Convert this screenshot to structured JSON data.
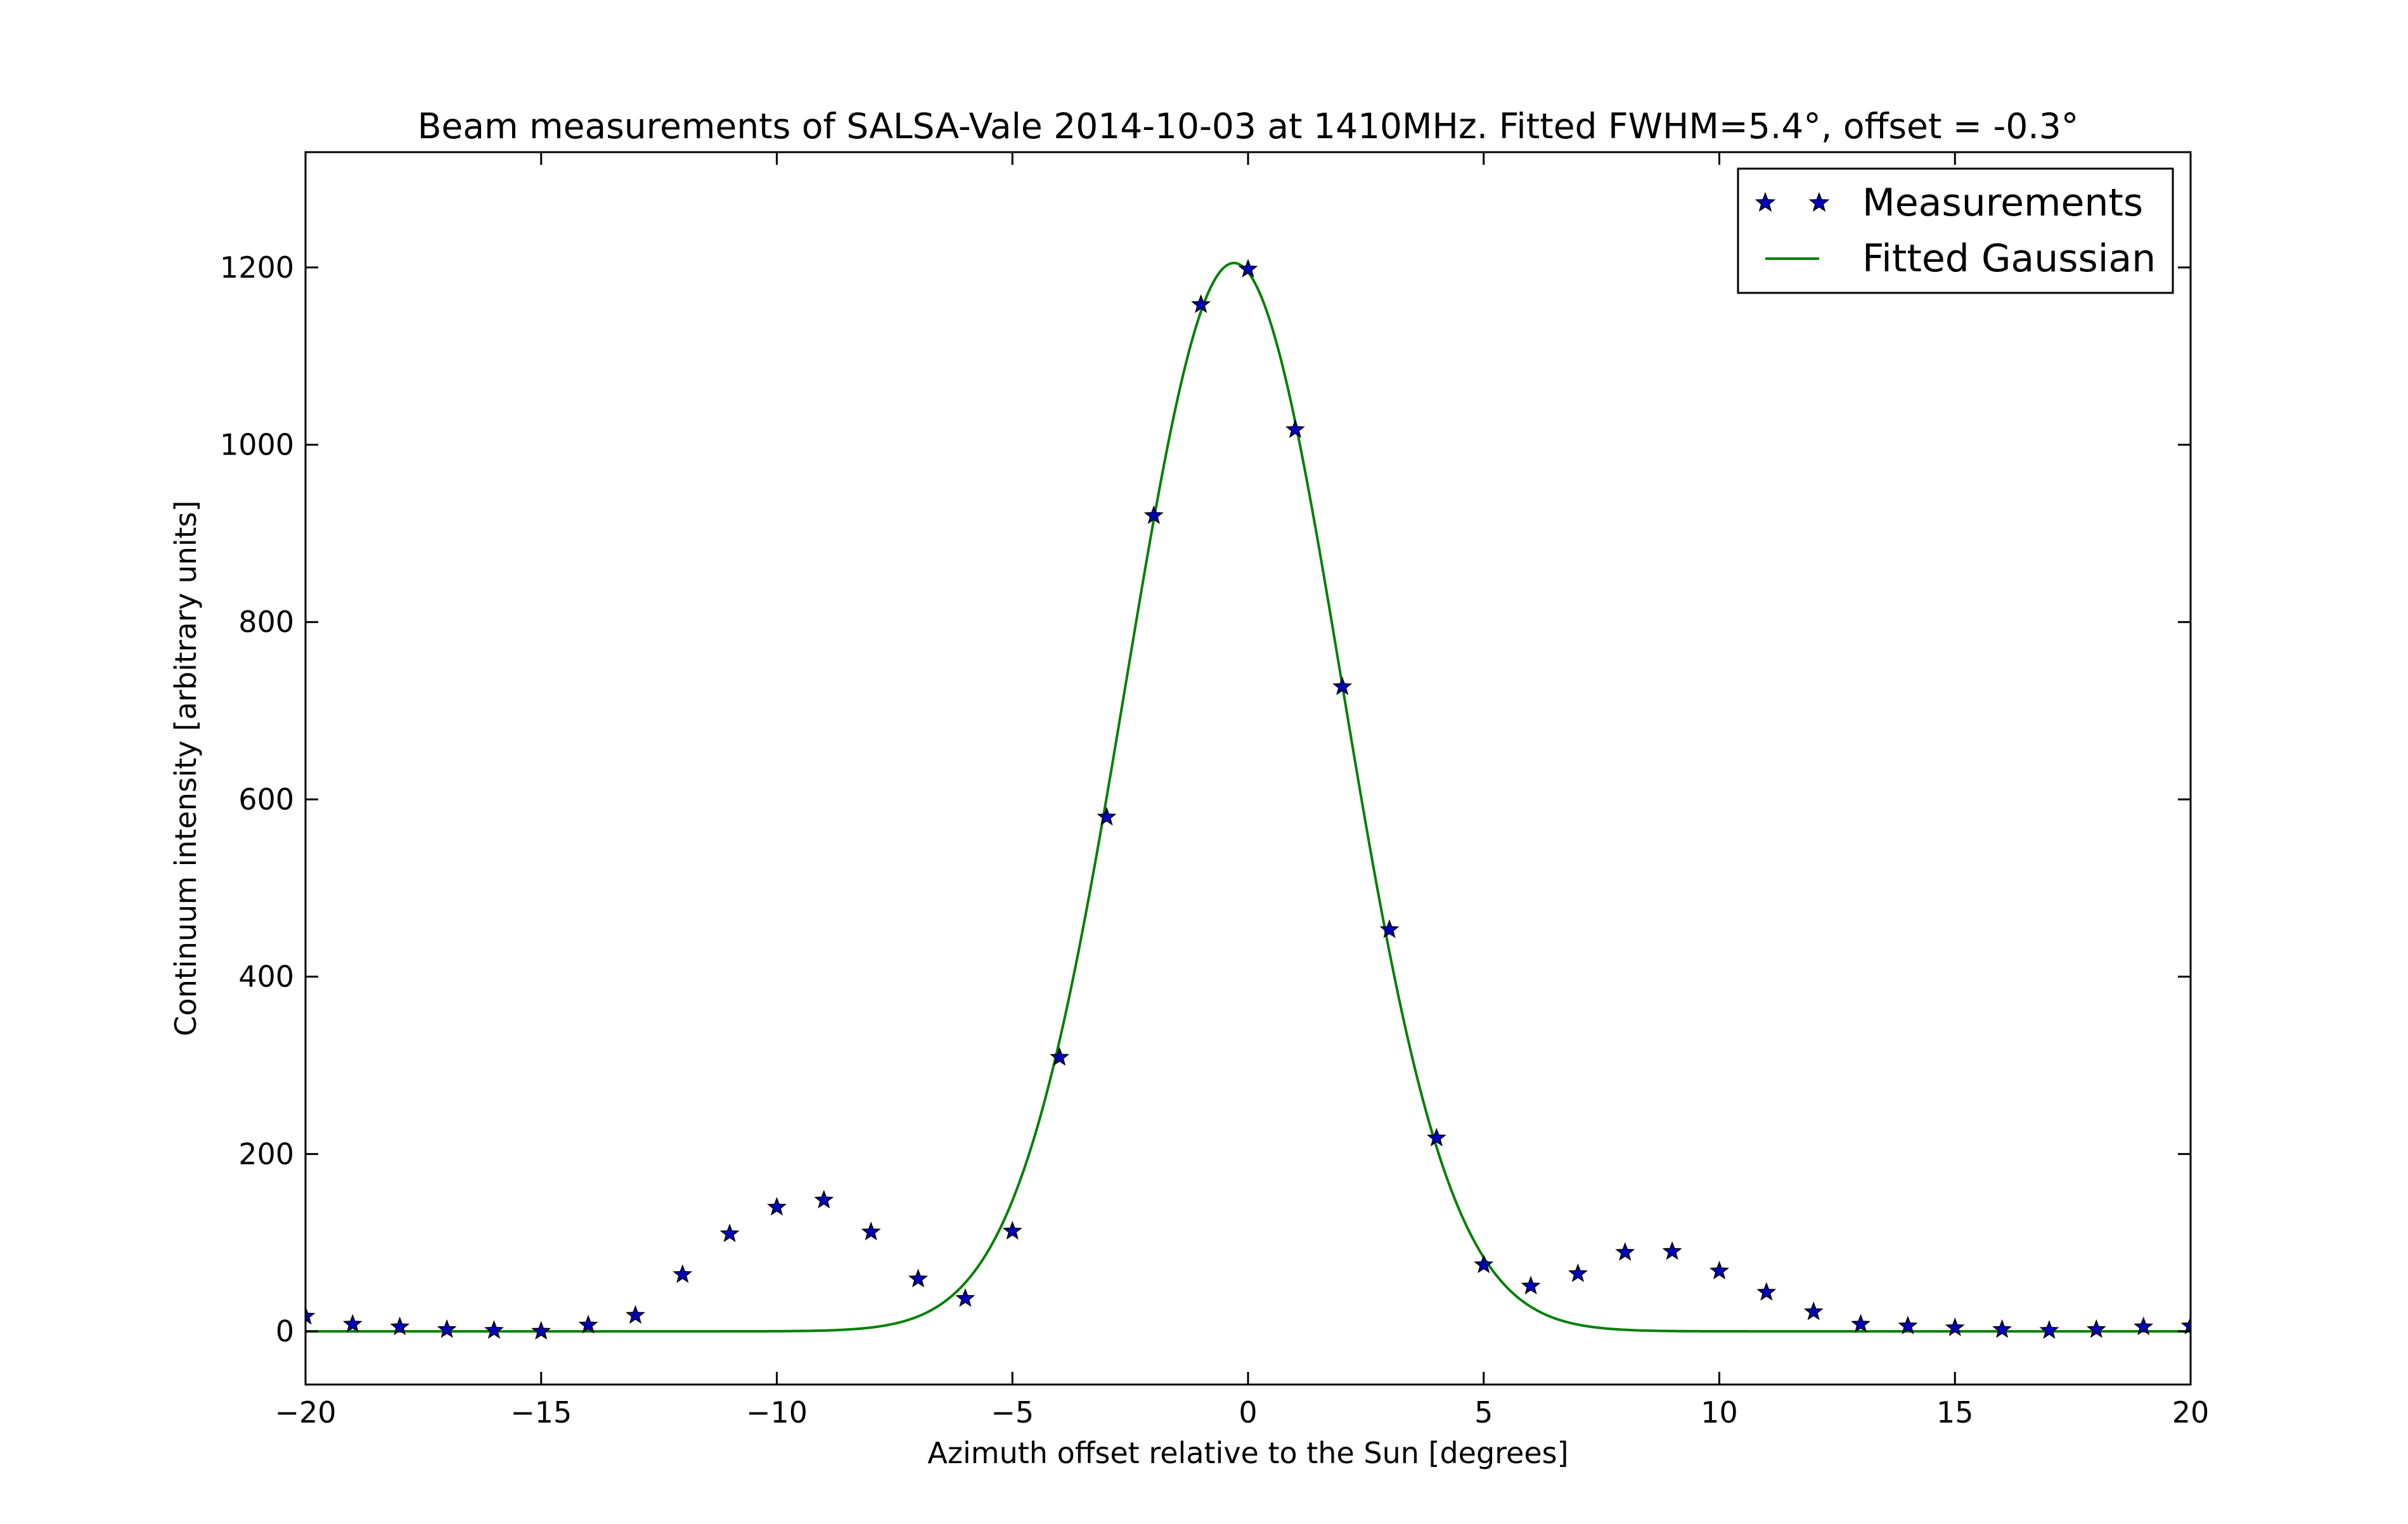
{
  "chart_data": {
    "type": "scatter",
    "title": "Beam measurements of SALSA-Vale 2014-10-03 at 1410MHz. Fitted FWHM=5.4°, offset = -0.3°",
    "xlabel": "Azimuth offset relative to the Sun [degrees]",
    "ylabel": "Continuum intensity [arbitrary units]",
    "xlim": [
      -20,
      20
    ],
    "ylim": [
      -60,
      1330
    ],
    "xticks": [
      -20,
      -15,
      -10,
      -5,
      0,
      5,
      10,
      15,
      20
    ],
    "xtick_labels": [
      "−20",
      "−15",
      "−10",
      "−5",
      "0",
      "5",
      "10",
      "15",
      "20"
    ],
    "yticks": [
      0,
      200,
      400,
      600,
      800,
      1000,
      1200
    ],
    "ytick_labels": [
      "0",
      "200",
      "400",
      "600",
      "800",
      "1000",
      "1200"
    ],
    "grid": false,
    "legend_position": "top-right",
    "series": [
      {
        "name": "Measurements",
        "kind": "scatter",
        "marker": "star",
        "color": "#0000bf",
        "x": [
          -20,
          -19,
          -18,
          -17,
          -16,
          -15,
          -14,
          -13,
          -12,
          -11,
          -10,
          -9,
          -8,
          -7,
          -6,
          -5,
          -4,
          -3,
          -2,
          -1,
          0,
          1,
          2,
          3,
          4,
          5,
          6,
          7,
          8,
          9,
          10,
          11,
          12,
          13,
          14,
          15,
          16,
          17,
          18,
          19,
          20
        ],
        "y": [
          17,
          8,
          5,
          2,
          1,
          0,
          7,
          18,
          64,
          110,
          140,
          148,
          112,
          59,
          37,
          113,
          309,
          580,
          920,
          1158,
          1198,
          1017,
          727,
          453,
          218,
          75,
          51,
          65,
          89,
          90,
          68,
          44,
          22,
          8,
          6,
          4,
          2,
          1,
          2,
          5,
          6
        ]
      },
      {
        "name": "Fitted Gaussian",
        "kind": "line",
        "color": "#008000",
        "amplitude": 1205,
        "center": -0.3,
        "fwhm": 5.4
      }
    ]
  }
}
